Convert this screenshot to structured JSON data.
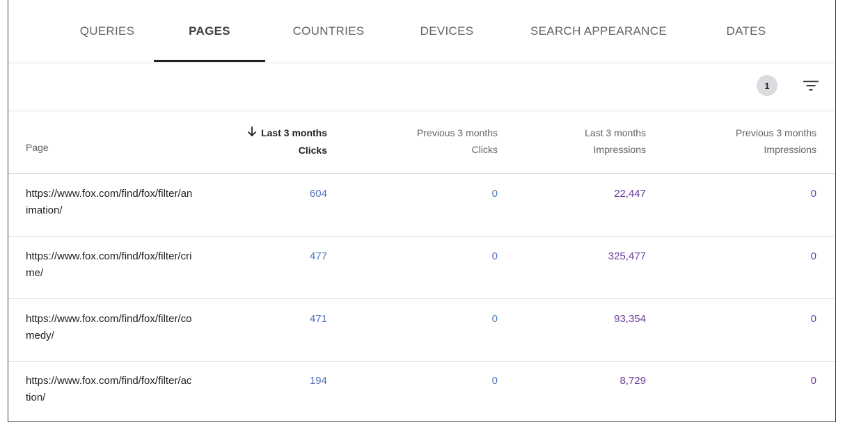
{
  "tabs": [
    {
      "label": "QUERIES",
      "active": false
    },
    {
      "label": "PAGES",
      "active": true
    },
    {
      "label": "COUNTRIES",
      "active": false
    },
    {
      "label": "DEVICES",
      "active": false
    },
    {
      "label": "SEARCH APPEARANCE",
      "active": false
    },
    {
      "label": "DATES",
      "active": false
    }
  ],
  "toolbar": {
    "filter_count": "1",
    "filter_icon": "filter-list-icon"
  },
  "table": {
    "sort_icon": "arrow-down-icon",
    "headers": {
      "page": "Page",
      "col1_period": "Last 3 months",
      "col1_metric": "Clicks",
      "col2_period": "Previous 3 months",
      "col2_metric": "Clicks",
      "col3_period": "Last 3 months",
      "col3_metric": "Impressions",
      "col4_period": "Previous 3 months",
      "col4_metric": "Impressions"
    },
    "rows": [
      {
        "page": "https://www.fox.com/find/fox/filter/animation/",
        "clicks": "604",
        "prev_clicks": "0",
        "impressions": "22,447",
        "prev_impressions": "0"
      },
      {
        "page": "https://www.fox.com/find/fox/filter/crime/",
        "clicks": "477",
        "prev_clicks": "0",
        "impressions": "325,477",
        "prev_impressions": "0"
      },
      {
        "page": "https://www.fox.com/find/fox/filter/comedy/",
        "clicks": "471",
        "prev_clicks": "0",
        "impressions": "93,354",
        "prev_impressions": "0"
      },
      {
        "page": "https://www.fox.com/find/fox/filter/action/",
        "clicks": "194",
        "prev_clicks": "0",
        "impressions": "8,729",
        "prev_impressions": "0"
      }
    ]
  },
  "colors": {
    "clicks": "#4e74b8",
    "impressions": "#6a3d9a",
    "active_tab_underline": "#202124"
  }
}
